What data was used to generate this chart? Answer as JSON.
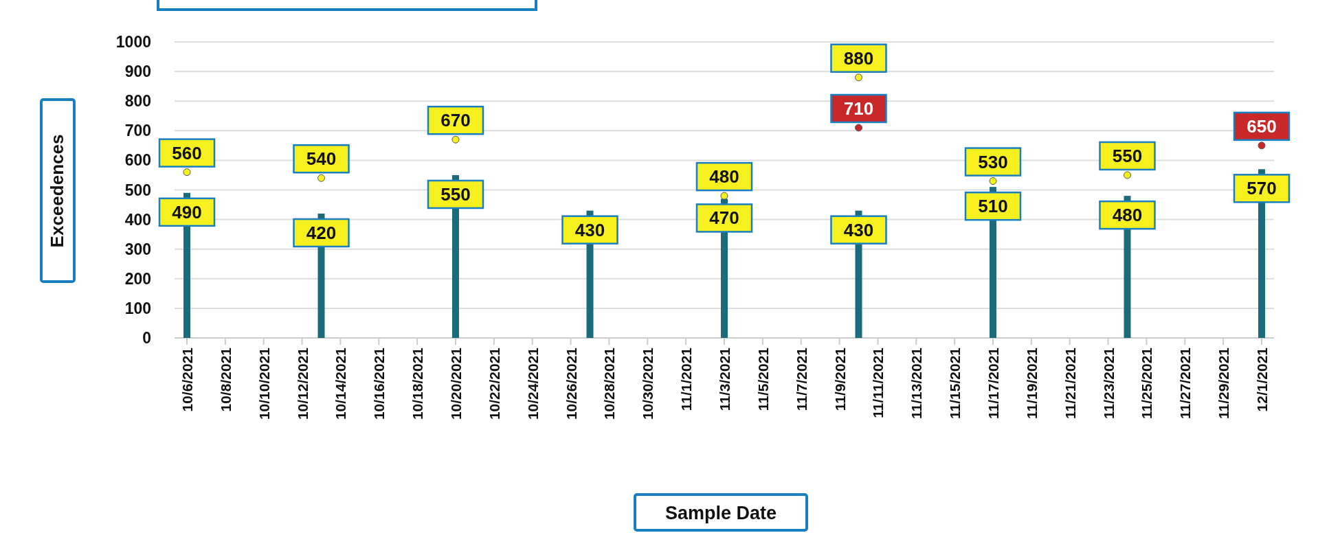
{
  "chart_data": {
    "type": "bar",
    "xlabel": "Sample Date",
    "ylabel": "Exceedences",
    "x": [
      "2021-10-06",
      "2021-10-13",
      "2021-10-20",
      "2021-10-27",
      "2021-11-03",
      "2021-11-10",
      "2021-11-17",
      "2021-11-24",
      "2021-12-01"
    ],
    "xlim": [
      "2021-10-06",
      "2021-12-01"
    ],
    "xticks": [
      {
        "value": "2021-10-06",
        "label": "10/6/2021"
      },
      {
        "value": "2021-10-08",
        "label": "10/8/2021"
      },
      {
        "value": "2021-10-10",
        "label": "10/10/2021"
      },
      {
        "value": "2021-10-12",
        "label": "10/12/2021"
      },
      {
        "value": "2021-10-14",
        "label": "10/14/2021"
      },
      {
        "value": "2021-10-16",
        "label": "10/16/2021"
      },
      {
        "value": "2021-10-18",
        "label": "10/18/2021"
      },
      {
        "value": "2021-10-20",
        "label": "10/20/2021"
      },
      {
        "value": "2021-10-22",
        "label": "10/22/2021"
      },
      {
        "value": "2021-10-24",
        "label": "10/24/2021"
      },
      {
        "value": "2021-10-26",
        "label": "10/26/2021"
      },
      {
        "value": "2021-10-28",
        "label": "10/28/2021"
      },
      {
        "value": "2021-10-30",
        "label": "10/30/2021"
      },
      {
        "value": "2021-11-01",
        "label": "11/1/2021"
      },
      {
        "value": "2021-11-03",
        "label": "11/3/2021"
      },
      {
        "value": "2021-11-05",
        "label": "11/5/2021"
      },
      {
        "value": "2021-11-07",
        "label": "11/7/2021"
      },
      {
        "value": "2021-11-09",
        "label": "11/9/2021"
      },
      {
        "value": "2021-11-11",
        "label": "11/11/2021"
      },
      {
        "value": "2021-11-13",
        "label": "11/13/2021"
      },
      {
        "value": "2021-11-15",
        "label": "11/15/2021"
      },
      {
        "value": "2021-11-17",
        "label": "11/17/2021"
      },
      {
        "value": "2021-11-19",
        "label": "11/19/2021"
      },
      {
        "value": "2021-11-21",
        "label": "11/21/2021"
      },
      {
        "value": "2021-11-23",
        "label": "11/23/2021"
      },
      {
        "value": "2021-11-25",
        "label": "11/25/2021"
      },
      {
        "value": "2021-11-27",
        "label": "11/27/2021"
      },
      {
        "value": "2021-11-29",
        "label": "11/29/2021"
      },
      {
        "value": "2021-12-01",
        "label": "12/1/2021"
      }
    ],
    "ylim": [
      0,
      1000
    ],
    "yticks": [
      0,
      100,
      200,
      300,
      400,
      500,
      600,
      700,
      800,
      900,
      1000
    ],
    "grid": "y",
    "data_labels": true,
    "series": [
      {
        "color": "#1b6b7d",
        "values": [
          490,
          420,
          550,
          430,
          470,
          430,
          510,
          480,
          570
        ]
      },
      {
        "type": "scatter",
        "colors": [
          "#f5f01e",
          "#f5f01e",
          "#f5f01e",
          null,
          "#f5f01e",
          "#f5f01e",
          "#f5f01e",
          "#f5f01e",
          "#c8282a"
        ],
        "values": [
          560,
          540,
          670,
          null,
          480,
          880,
          530,
          550,
          650
        ]
      },
      {
        "type": "scatter",
        "color": "#c8282a",
        "values": [
          null,
          null,
          null,
          null,
          null,
          710,
          null,
          null,
          null
        ]
      }
    ]
  }
}
